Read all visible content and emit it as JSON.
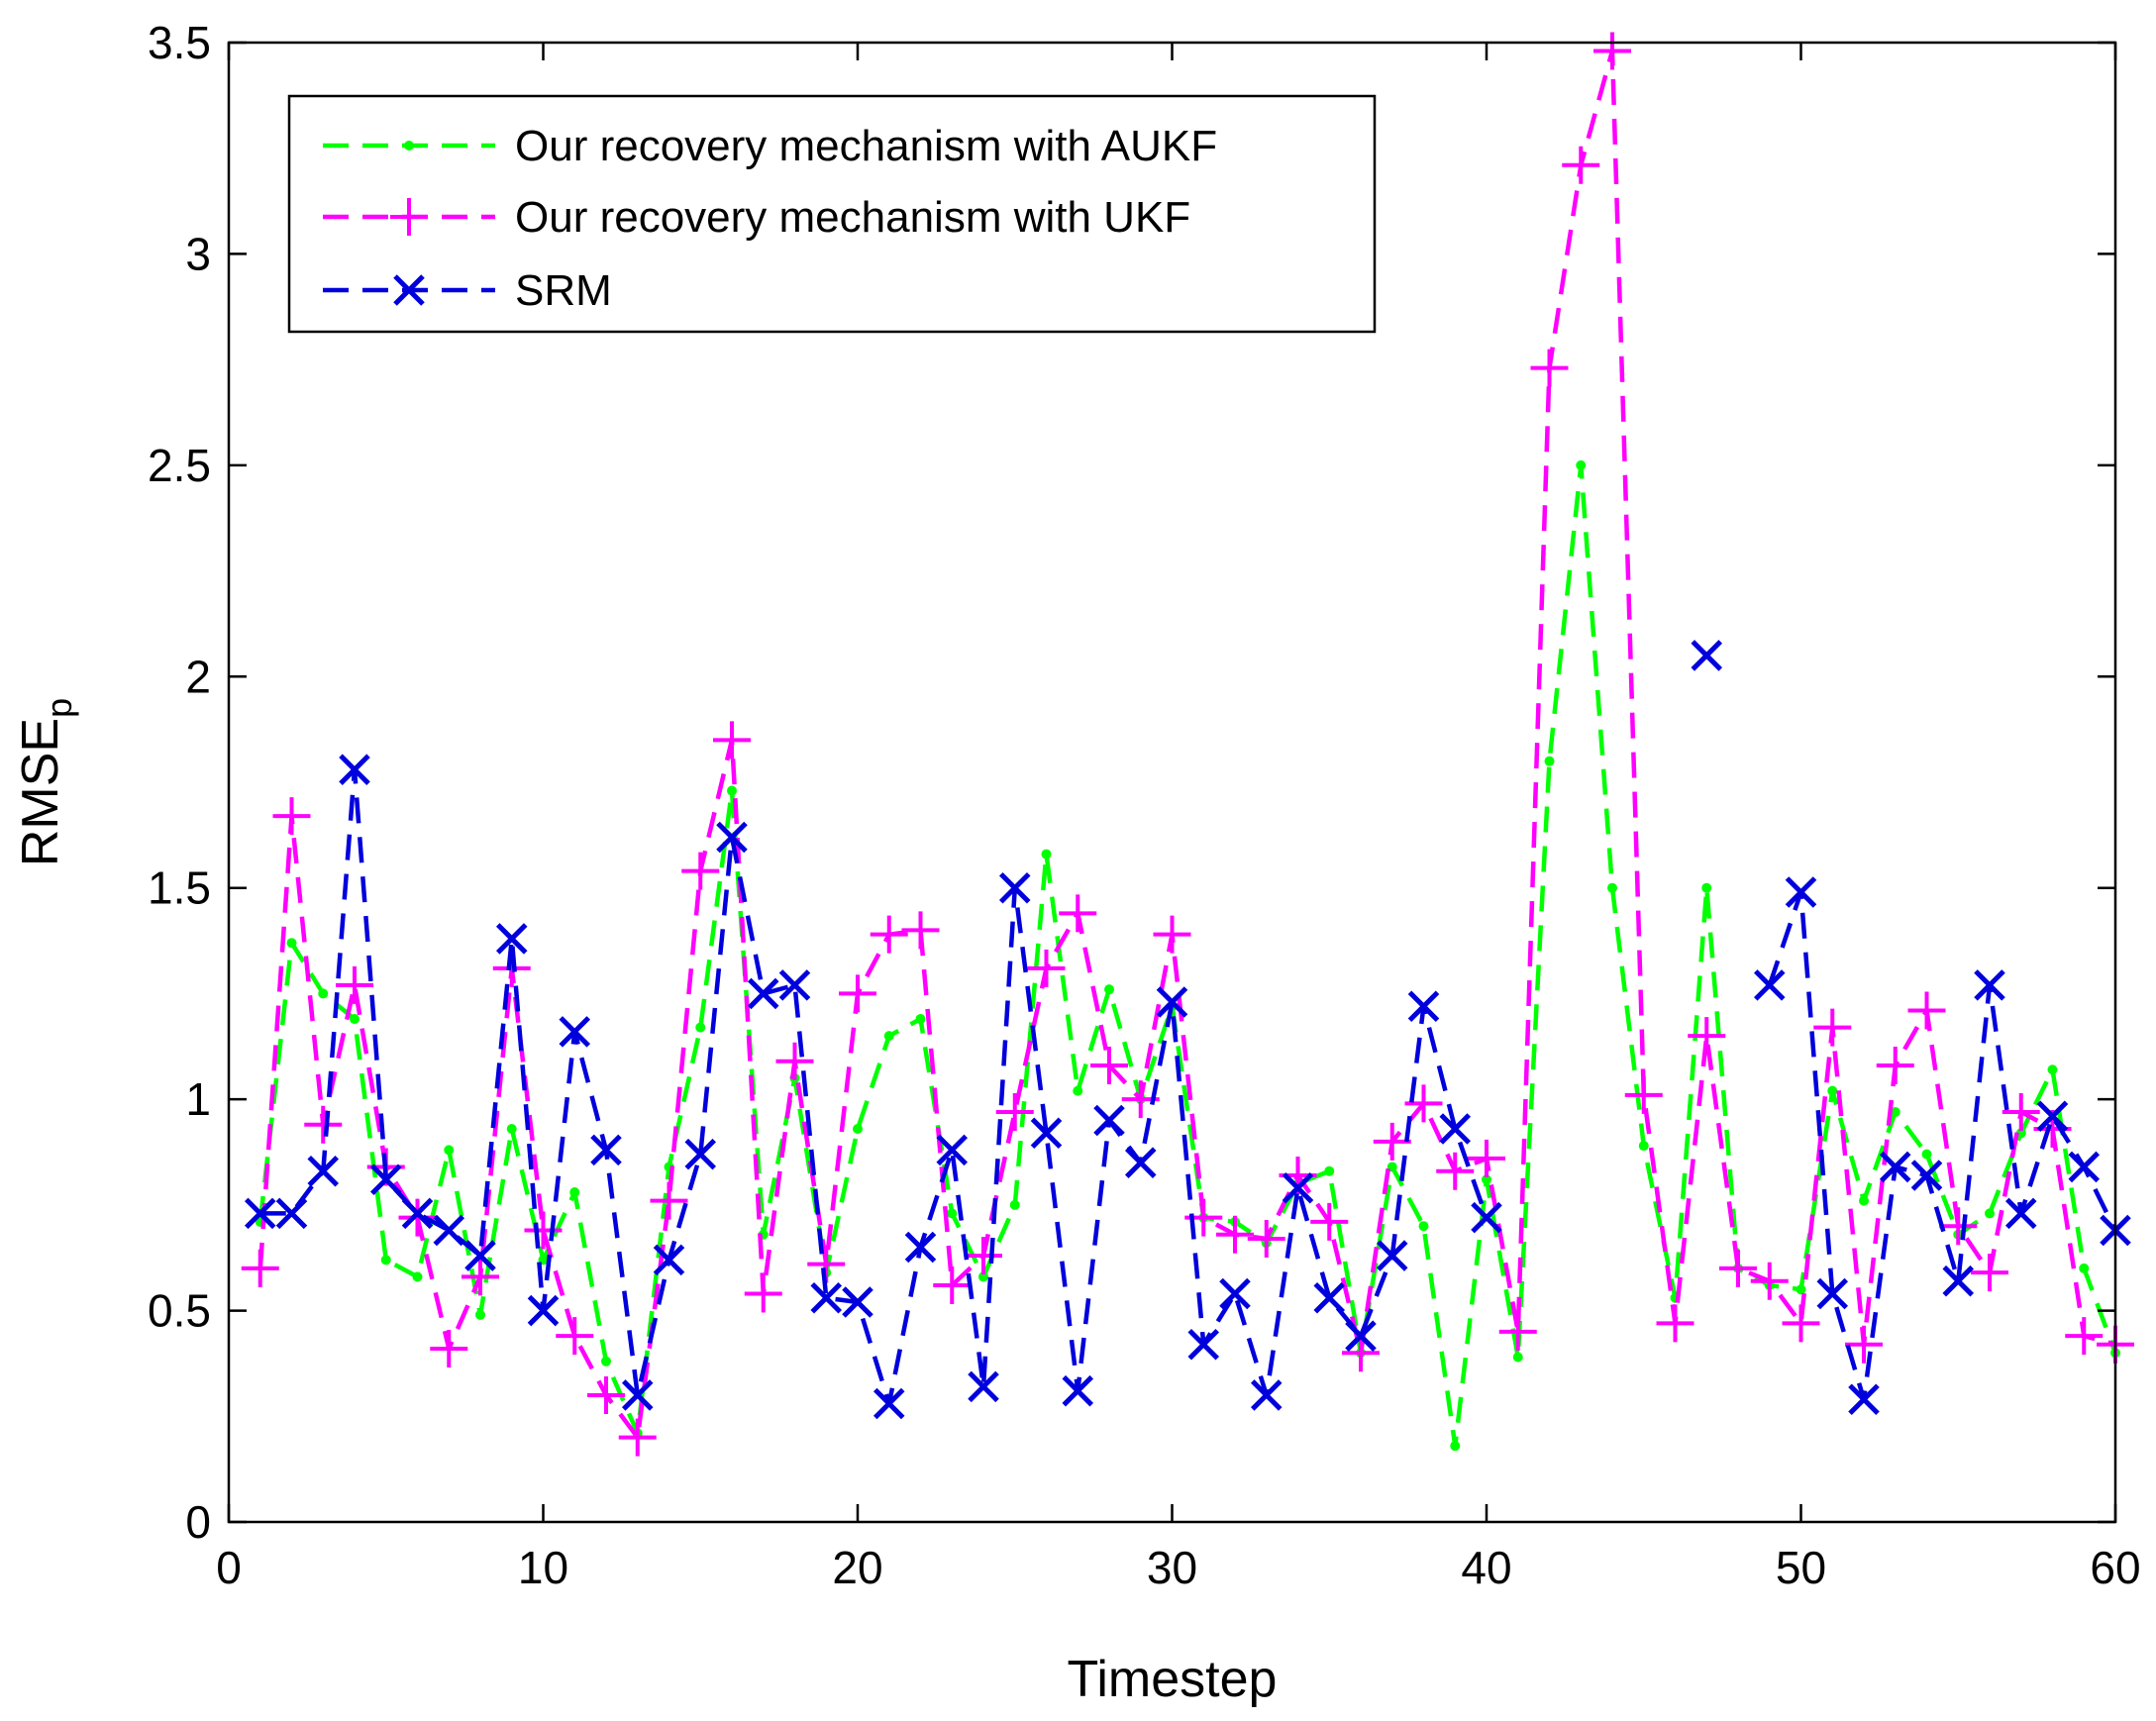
{
  "chart_data": {
    "type": "line",
    "xlabel": "Timestep",
    "ylabel": "RMSE",
    "ylabel_subscript": "p",
    "xlim": [
      0,
      60
    ],
    "ylim": [
      0,
      3.5
    ],
    "xticks": [
      0,
      10,
      20,
      30,
      40,
      50,
      60
    ],
    "yticks": [
      0,
      0.5,
      1,
      1.5,
      2,
      2.5,
      3,
      3.5
    ],
    "xtick_labels": [
      "0",
      "10",
      "20",
      "30",
      "40",
      "50",
      "60"
    ],
    "ytick_labels": [
      "0",
      "0.5",
      "1",
      "1.5",
      "2",
      "2.5",
      "3",
      "3.5"
    ],
    "grid": false,
    "legend_position": "top-left",
    "x": [
      1,
      2,
      3,
      4,
      5,
      6,
      7,
      8,
      9,
      10,
      11,
      12,
      13,
      14,
      15,
      16,
      17,
      18,
      19,
      20,
      21,
      22,
      23,
      24,
      25,
      26,
      27,
      28,
      29,
      30,
      31,
      32,
      33,
      34,
      35,
      36,
      37,
      38,
      39,
      40,
      41,
      42,
      43,
      44,
      45,
      46,
      47,
      48,
      49,
      50,
      51,
      52,
      53,
      54,
      55,
      56,
      57,
      58,
      59,
      60
    ],
    "series": [
      {
        "name": "Our recovery mechanism with AUKF",
        "color": "#00ff00",
        "marker": "dot",
        "values": [
          0.71,
          1.37,
          1.25,
          1.19,
          0.62,
          0.58,
          0.88,
          0.49,
          0.93,
          0.62,
          0.78,
          0.38,
          0.21,
          0.84,
          1.17,
          1.73,
          0.68,
          1.05,
          0.59,
          0.93,
          1.15,
          1.19,
          0.73,
          0.58,
          0.75,
          1.58,
          1.02,
          1.26,
          1.0,
          1.22,
          0.72,
          0.71,
          0.66,
          0.8,
          0.83,
          0.4,
          0.84,
          0.7,
          0.18,
          0.81,
          0.39,
          1.8,
          2.5,
          1.5,
          0.89,
          0.53,
          1.5,
          0.6,
          0.56,
          0.55,
          1.02,
          0.76,
          0.97,
          0.87,
          0.68,
          0.73,
          0.92,
          1.07,
          0.6,
          0.4
        ]
      },
      {
        "name": "Our recovery mechanism with UKF",
        "color": "#ff00ff",
        "marker": "plus",
        "values": [
          0.6,
          1.67,
          0.94,
          1.27,
          0.84,
          0.72,
          0.41,
          0.58,
          1.31,
          0.69,
          0.44,
          0.3,
          0.2,
          0.76,
          1.54,
          1.85,
          0.54,
          1.09,
          0.61,
          1.25,
          1.39,
          1.4,
          0.56,
          0.63,
          0.97,
          1.31,
          1.44,
          1.08,
          1.0,
          1.39,
          0.72,
          0.68,
          0.67,
          0.82,
          0.71,
          0.4,
          0.9,
          0.99,
          0.83,
          0.86,
          0.45,
          2.73,
          3.21,
          3.48,
          1.01,
          0.47,
          1.15,
          0.6,
          0.57,
          0.47,
          1.17,
          0.42,
          1.08,
          1.21,
          0.7,
          0.59,
          0.97,
          0.93,
          0.44,
          0.42
        ]
      },
      {
        "name": "SRM",
        "color": "#0000dd",
        "marker": "x",
        "values": [
          0.73,
          0.73,
          0.83,
          1.78,
          0.81,
          0.73,
          0.69,
          0.63,
          1.38,
          0.5,
          1.16,
          0.88,
          0.3,
          0.62,
          0.87,
          1.62,
          1.25,
          1.27,
          0.53,
          0.52,
          0.28,
          0.65,
          0.88,
          0.32,
          1.5,
          0.92,
          0.31,
          0.95,
          0.85,
          1.23,
          0.42,
          0.54,
          0.3,
          0.79,
          0.53,
          0.44,
          0.63,
          1.22,
          0.93,
          0.72,
          null,
          null,
          null,
          null,
          null,
          null,
          2.05,
          null,
          1.27,
          1.49,
          0.54,
          0.29,
          0.84,
          0.82,
          0.57,
          1.27,
          0.73,
          0.96,
          0.84,
          0.69
        ]
      }
    ]
  }
}
